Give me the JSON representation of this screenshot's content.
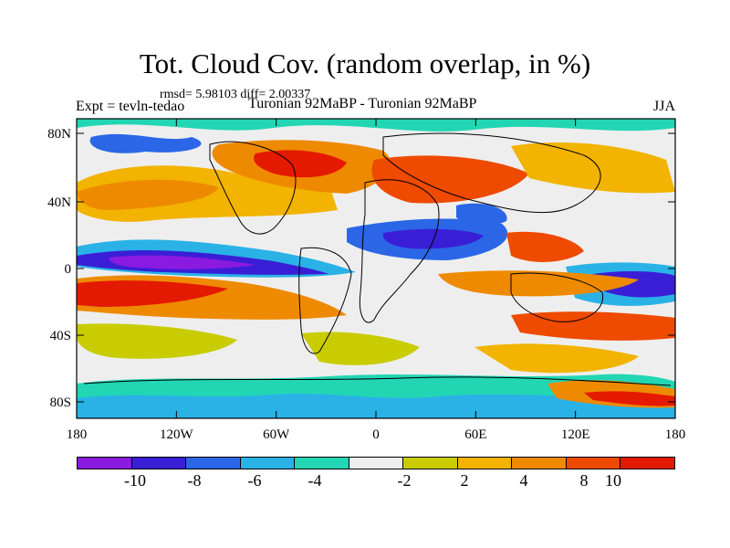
{
  "header": {
    "title": "Tot. Cloud Cov. (random overlap, in %)",
    "stats": "rmsd= 5.98103 diff= 2.00337",
    "experiment": "Expt = tevln-tedao",
    "comparison": "Turonian  92MaBP - Turonian  92MaBP",
    "season": "JJA"
  },
  "axes": {
    "lat_ticks": [
      "80N",
      "40N",
      "0",
      "40S",
      "80S"
    ],
    "lon_ticks": [
      "180",
      "120W",
      "60W",
      "0",
      "60E",
      "120E",
      "180"
    ]
  },
  "colorbar": {
    "colors": [
      "#8b1ae0",
      "#3a1ed6",
      "#2a66e6",
      "#2ab2e6",
      "#22d6b4",
      "#eeeeee",
      "#c8cc00",
      "#f2b400",
      "#ee8a00",
      "#ee4a00",
      "#e41a00"
    ],
    "labels": [
      "-10",
      "-8",
      "-6",
      "-4",
      "-2",
      "2",
      "4",
      "8",
      "10"
    ]
  }
}
